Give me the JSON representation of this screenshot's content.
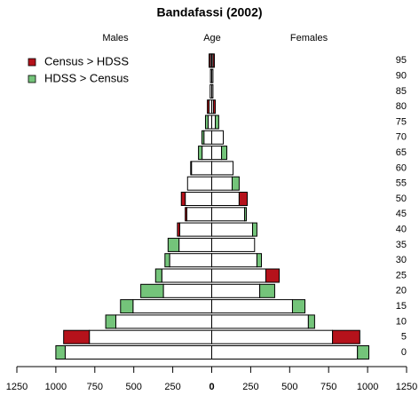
{
  "chart_data": {
    "type": "pyramid",
    "title": "Bandafassi (2002)",
    "left_label": "Males",
    "center_label": "Age",
    "right_label": "Females",
    "categories": [
      0,
      5,
      10,
      15,
      20,
      25,
      30,
      35,
      40,
      45,
      50,
      55,
      60,
      65,
      70,
      75,
      80,
      85,
      90,
      95
    ],
    "males": {
      "census": [
        940,
        950,
        615,
        505,
        310,
        320,
        270,
        210,
        220,
        170,
        195,
        155,
        135,
        62,
        50,
        23,
        28,
        10,
        8,
        17
      ],
      "hdss": [
        1000,
        785,
        680,
        585,
        455,
        360,
        300,
        280,
        205,
        160,
        170,
        155,
        130,
        85,
        63,
        40,
        17,
        10,
        8,
        8
      ]
    },
    "females": {
      "census": [
        935,
        950,
        620,
        518,
        308,
        433,
        290,
        275,
        262,
        211,
        228,
        131,
        137,
        63,
        74,
        23,
        23,
        8,
        8,
        17
      ],
      "hdss": [
        1008,
        775,
        660,
        598,
        404,
        347,
        319,
        275,
        290,
        222,
        176,
        176,
        137,
        97,
        74,
        45,
        11,
        8,
        8,
        8
      ]
    },
    "legend": [
      {
        "label": "Census > HDSS",
        "color": "#b5121b"
      },
      {
        "label": "HDSS > Census",
        "color": "#74c47a"
      }
    ],
    "legend_position": "upper left",
    "xlim": [
      -1250,
      1250
    ],
    "xticks": [
      {
        "value": -1250,
        "label": "1250"
      },
      {
        "value": -1000,
        "label": "1000"
      },
      {
        "value": -750,
        "label": "750"
      },
      {
        "value": -500,
        "label": "500"
      },
      {
        "value": -250,
        "label": "250"
      },
      0,
      250,
      500,
      750,
      1000,
      1250
    ]
  }
}
